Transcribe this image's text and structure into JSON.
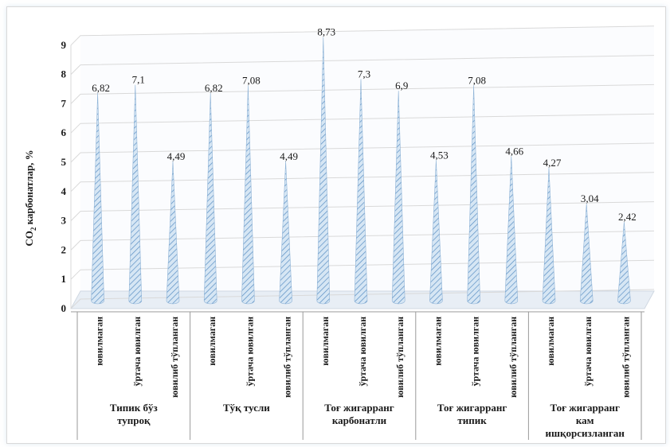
{
  "chart_data": {
    "type": "bar",
    "ylabel_main": "CO",
    "ylabel_sub": "2",
    "ylabel_rest": " карбонатлар, %",
    "ylim": [
      0,
      9
    ],
    "yticks": [
      0,
      1,
      2,
      3,
      4,
      5,
      6,
      7,
      8,
      9
    ],
    "grid": true,
    "groups": [
      {
        "label_lines": [
          "Типик бўз",
          "тупроқ"
        ],
        "bars": [
          {
            "category": "ювилмаган",
            "value": 6.82,
            "label": "6,82"
          },
          {
            "category": "ўртача ювилган",
            "value": 7.1,
            "label": "7,1"
          },
          {
            "category": "ювилиб тўпланган",
            "value": 4.49,
            "label": "4,49"
          }
        ]
      },
      {
        "label_lines": [
          "Тўқ тусли"
        ],
        "bars": [
          {
            "category": "ювилмаган",
            "value": 6.82,
            "label": "6,82"
          },
          {
            "category": "ўртача ювилган",
            "value": 7.08,
            "label": "7,08"
          },
          {
            "category": "ювилиб тўпланган",
            "value": 4.49,
            "label": "4,49"
          }
        ]
      },
      {
        "label_lines": [
          "Тоғ жигарранг",
          "карбонатли"
        ],
        "bars": [
          {
            "category": "ювилмаган",
            "value": 8.73,
            "label": "8,73"
          },
          {
            "category": "ўртача ювилган",
            "value": 7.3,
            "label": "7,3"
          },
          {
            "category": "ювилиб тўпланган",
            "value": 6.9,
            "label": "6,9"
          }
        ]
      },
      {
        "label_lines": [
          "Тоғ жигарранг",
          "типик"
        ],
        "bars": [
          {
            "category": "ювилмаган",
            "value": 4.53,
            "label": "4,53"
          },
          {
            "category": "ўртача ювилган",
            "value": 7.08,
            "label": "7,08"
          },
          {
            "category": "ювилиб тўпланган",
            "value": 4.66,
            "label": "4,66"
          }
        ]
      },
      {
        "label_lines": [
          "Тоғ жигарранг",
          "кам",
          "ишқорсизланган"
        ],
        "bars": [
          {
            "category": "ювилмаган",
            "value": 4.27,
            "label": "4,27"
          },
          {
            "category": "ўртача ювилган",
            "value": 3.04,
            "label": "3,04"
          },
          {
            "category": "ювилиб тўпланган",
            "value": 2.42,
            "label": "2,42"
          }
        ]
      }
    ],
    "colors": {
      "cone_fill": "#d6e6f4",
      "cone_hatch": "#5a8fc4",
      "grid": "#d9d9d9",
      "floor": "#e8eef5"
    }
  }
}
